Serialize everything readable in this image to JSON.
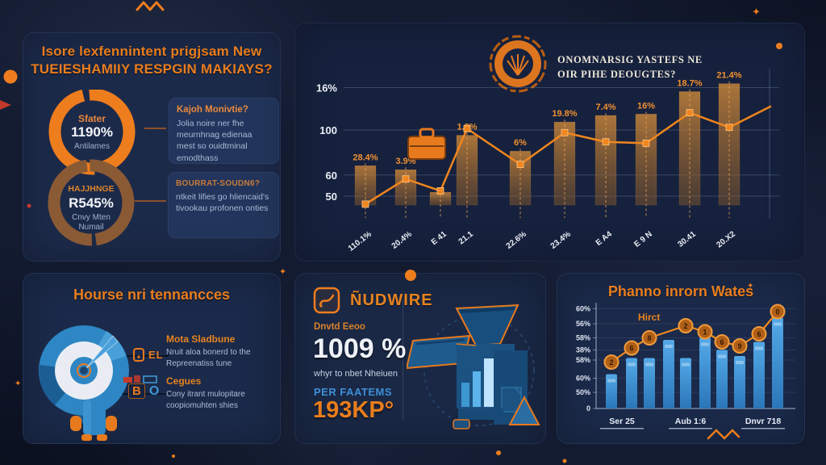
{
  "colors": {
    "accent": "#ee7d1e",
    "blue": "#3f97d2",
    "bg": "#131b31",
    "panel": "#1b2a4a",
    "brown": "#8a5a35",
    "red": "#c0392b"
  },
  "top_left": {
    "title_line1": "Isore lexfennintent prigjsam New",
    "title_line2": "TUEIESHAMIIY RESPGIN MAKIAYS?",
    "donut_top": {
      "label": "Sfater",
      "value": "1190%",
      "sub": "Antilames"
    },
    "donut_bottom": {
      "label": "HAJJHNGE",
      "value": "R545%",
      "sub1": "Cnvy Mten",
      "sub2": "Numail"
    },
    "card1": {
      "heading": "Kajoh Monivtie?",
      "body": "Jolia noire ner fhe meurnhnag edienaa mest so ouidtminal emodthass"
    },
    "card2": {
      "heading": "BOURRAT-SOUDN6?",
      "body": "ntkeit lifies go hliencaid's tivookau profonen onties"
    }
  },
  "top_right": {
    "title_line1": "ONOMNARSIG YASTEFS NE",
    "title_line2": "OIR PIHE DEOUGTES?"
  },
  "bottom_left": {
    "title": "Hourse nri tennancces",
    "legend1": "EL",
    "legend2_prefix": "B",
    "legend2": "O",
    "item1_heading": "Mota Sladbune",
    "item1_body": "Nruit aloa bonerd to the Repreenatiss tune",
    "item2_heading": "Cegues",
    "item2_body": "Cony itrant mulopitare coopiomuhten shies"
  },
  "bottom_mid": {
    "header": "ÑUDWIRE",
    "kicker": "Dnvtd Eeoo",
    "big_value": "1009 %",
    "caption": "whyr to nbet Nheiuen",
    "sub_label": "PER FAATEMS",
    "sub_value": "193KP°"
  },
  "bottom_right": {
    "title": "Phanno inrorn Wates"
  },
  "chart_data": [
    {
      "id": "engagement-trend",
      "type": "bar+line",
      "title": "ONOMNARSIG YASTEFS NE OIR PIHE DEOUGTES?",
      "categories": [
        "110.1%",
        "20.4%",
        "E 41",
        "21.1",
        "22.6%",
        "23.4%",
        "E A4",
        "E 9 N",
        "30.41",
        "20.X2"
      ],
      "bar_values": [
        73,
        70,
        53,
        96,
        84,
        106,
        111,
        112,
        129,
        135
      ],
      "bar_labels": [
        "28.4%",
        "3.9%",
        "",
        "1.8%",
        "6%",
        "19.8%",
        "7.4%",
        "16%",
        "18.7%",
        "21.4%"
      ],
      "line_values": [
        44,
        63,
        54,
        101,
        74,
        98,
        91,
        90,
        113,
        102
      ],
      "line_tail_value": 118,
      "yticks": [
        {
          "label": "16%",
          "value": 132
        },
        {
          "label": "100",
          "value": 100
        },
        {
          "label": "60",
          "value": 66
        },
        {
          "label": "50",
          "value": 50
        }
      ],
      "grid": true,
      "legend_position": "none"
    },
    {
      "id": "phanno-inrorn-wates",
      "type": "bar+line",
      "title": "Phanno inrorn Wates",
      "categories": [
        "Ser 25",
        "Aub 1:6",
        "Dnvr 718"
      ],
      "bar_values": [
        34,
        50,
        50,
        68,
        50,
        70,
        58,
        52,
        66,
        90
      ],
      "line": {
        "label": "Hirct",
        "values": [
          46,
          60,
          70,
          82,
          76,
          66,
          62,
          74,
          96
        ],
        "badges": [
          "2",
          "6",
          "8",
          "2",
          "1",
          "6",
          "9",
          "6",
          "0"
        ],
        "bar_index": [
          0,
          1,
          2,
          4,
          5,
          6,
          7,
          8,
          9
        ]
      },
      "yticks": [
        {
          "label": "60%",
          "value": 99
        },
        {
          "label": "56%",
          "value": 84
        },
        {
          "label": "58%",
          "value": 70
        },
        {
          "label": "38%",
          "value": 58
        },
        {
          "label": "58%",
          "value": 48
        },
        {
          "label": "60%",
          "value": 30
        },
        {
          "label": "50%",
          "value": 16
        },
        {
          "label": "0",
          "value": 0
        }
      ],
      "ylim": [
        0,
        100
      ],
      "grid": true
    },
    {
      "id": "top-left-gauges",
      "type": "donut",
      "items": [
        {
          "label": "Sfater",
          "value_label": "1190%",
          "sub": "Antilames",
          "color": "#ee7d1e"
        },
        {
          "label": "HAJJHNGE",
          "value_label": "R545%",
          "sub": "Cnvy Mten Numail",
          "color": "#8a5a35"
        }
      ]
    },
    {
      "id": "hourse-pie",
      "type": "pie",
      "segments": [
        {
          "name": "main",
          "value": 70,
          "color": "#2e86c4"
        },
        {
          "name": "dark",
          "value": 20,
          "color": "#1b5e94"
        },
        {
          "name": "light",
          "value": 10,
          "color": "#49a0d8"
        }
      ]
    }
  ]
}
